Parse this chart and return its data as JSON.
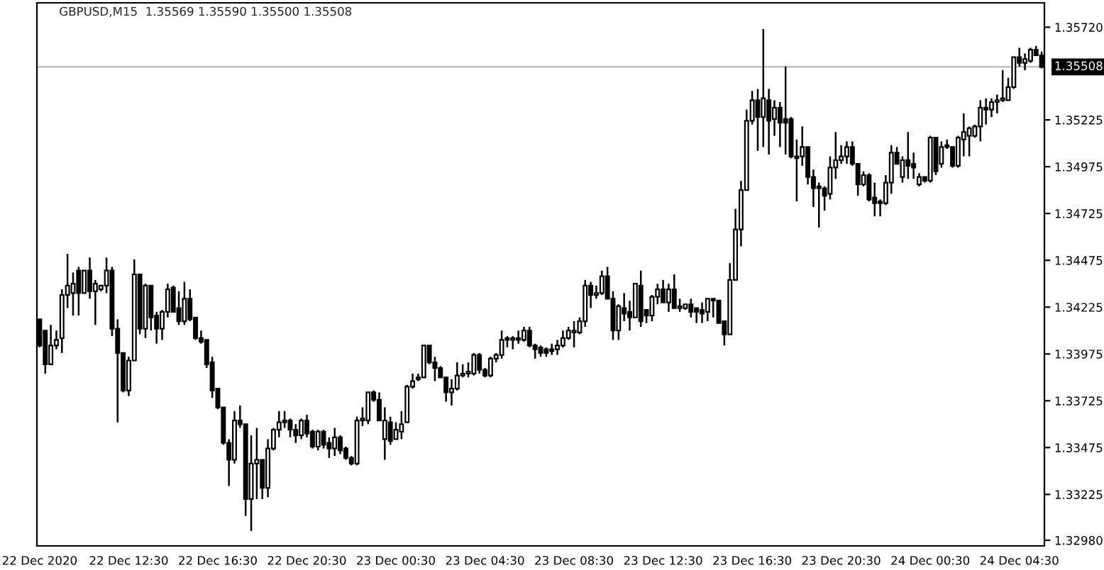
{
  "chart_data": {
    "type": "candlestick",
    "title": "GBPUSD,M15  1.35569 1.35590 1.35500 1.35508",
    "color": "#000000",
    "grid": false,
    "categories": [
      "22 Dec 2020",
      null,
      null,
      null,
      null,
      null,
      null,
      null,
      null,
      null,
      null,
      null,
      null,
      null,
      null,
      null,
      "22 Dec 12:30",
      null,
      null,
      null,
      null,
      null,
      null,
      null,
      null,
      null,
      null,
      null,
      null,
      null,
      null,
      null,
      "22 Dec 16:30",
      null,
      null,
      null,
      null,
      null,
      null,
      null,
      null,
      null,
      null,
      null,
      null,
      null,
      null,
      null,
      "22 Dec 20:30",
      null,
      null,
      null,
      null,
      null,
      null,
      null,
      null,
      null,
      null,
      null,
      null,
      null,
      null,
      null,
      "23 Dec 00:30",
      null,
      null,
      null,
      null,
      null,
      null,
      null,
      null,
      null,
      null,
      null,
      null,
      null,
      null,
      null,
      "23 Dec 04:30",
      null,
      null,
      null,
      null,
      null,
      null,
      null,
      null,
      null,
      null,
      null,
      null,
      null,
      null,
      null,
      "23 Dec 08:30",
      null,
      null,
      null,
      null,
      null,
      null,
      null,
      null,
      null,
      null,
      null,
      null,
      null,
      null,
      null,
      "23 Dec 12:30",
      null,
      null,
      null,
      null,
      null,
      null,
      null,
      null,
      null,
      null,
      null,
      null,
      null,
      null,
      null,
      "23 Dec 16:30",
      null,
      null,
      null,
      null,
      null,
      null,
      null,
      null,
      null,
      null,
      null,
      null,
      null,
      null,
      null,
      "23 Dec 20:30",
      null,
      null,
      null,
      null,
      null,
      null,
      null,
      null,
      null,
      null,
      null,
      null,
      null,
      null,
      null,
      "24 Dec 00:30",
      null,
      null,
      null,
      null,
      null,
      null,
      null,
      null,
      null,
      null,
      null,
      null,
      null,
      null,
      null,
      "24 Dec 04:30",
      null,
      null,
      null,
      null
    ],
    "ohlc": [
      [
        1.3416,
        1.3416,
        1.3401,
        1.3402
      ],
      [
        1.341,
        1.341,
        1.3387,
        1.3392
      ],
      [
        1.3392,
        1.3413,
        1.3392,
        1.3402
      ],
      [
        1.3402,
        1.341,
        1.34,
        1.3405
      ],
      [
        1.3406,
        1.3432,
        1.3398,
        1.3429
      ],
      [
        1.3429,
        1.3451,
        1.3422,
        1.3434
      ],
      [
        1.343,
        1.3441,
        1.3418,
        1.3435
      ],
      [
        1.3442,
        1.3444,
        1.3418,
        1.343
      ],
      [
        1.343,
        1.3442,
        1.343,
        1.3442
      ],
      [
        1.3442,
        1.3449,
        1.3427,
        1.3431
      ],
      [
        1.3431,
        1.3437,
        1.3413,
        1.3435
      ],
      [
        1.3432,
        1.3434,
        1.3431,
        1.3434
      ],
      [
        1.3434,
        1.3449,
        1.343,
        1.3442
      ],
      [
        1.3442,
        1.3444,
        1.3407,
        1.3411
      ],
      [
        1.3411,
        1.3416,
        1.3361,
        1.3398
      ],
      [
        1.3398,
        1.3398,
        1.3377,
        1.3378
      ],
      [
        1.3378,
        1.3396,
        1.3375,
        1.3394
      ],
      [
        1.3394,
        1.3448,
        1.3394,
        1.344
      ],
      [
        1.344,
        1.344,
        1.3408,
        1.3411
      ],
      [
        1.3411,
        1.3435,
        1.3406,
        1.3434
      ],
      [
        1.3434,
        1.3434,
        1.341,
        1.3417
      ],
      [
        1.3418,
        1.342,
        1.3403,
        1.3411
      ],
      [
        1.3411,
        1.3421,
        1.3405,
        1.342
      ],
      [
        1.342,
        1.3435,
        1.3417,
        1.3432
      ],
      [
        1.3433,
        1.3434,
        1.342,
        1.342
      ],
      [
        1.3422,
        1.3431,
        1.3413,
        1.3415
      ],
      [
        1.3415,
        1.3436,
        1.3413,
        1.3427
      ],
      [
        1.3427,
        1.3432,
        1.3415,
        1.3416
      ],
      [
        1.3417,
        1.3417,
        1.3405,
        1.3406
      ],
      [
        1.3406,
        1.341,
        1.3403,
        1.3404
      ],
      [
        1.3405,
        1.3405,
        1.339,
        1.3392
      ],
      [
        1.3393,
        1.3396,
        1.3374,
        1.3378
      ],
      [
        1.3379,
        1.3379,
        1.3368,
        1.3369
      ],
      [
        1.3369,
        1.3369,
        1.3349,
        1.335
      ],
      [
        1.335,
        1.3352,
        1.3327,
        1.3341
      ],
      [
        1.3341,
        1.3367,
        1.3339,
        1.3362
      ],
      [
        1.3362,
        1.337,
        1.3358,
        1.336
      ],
      [
        1.336,
        1.336,
        1.3311,
        1.332
      ],
      [
        1.332,
        1.3354,
        1.3303,
        1.3339
      ],
      [
        1.3339,
        1.3358,
        1.332,
        1.3341
      ],
      [
        1.3341,
        1.3341,
        1.332,
        1.3326
      ],
      [
        1.3326,
        1.3352,
        1.3321,
        1.3347
      ],
      [
        1.3347,
        1.3358,
        1.3346,
        1.3357
      ],
      [
        1.3357,
        1.3367,
        1.3353,
        1.3361
      ],
      [
        1.3361,
        1.3367,
        1.3358,
        1.3362
      ],
      [
        1.3362,
        1.3363,
        1.3353,
        1.3357
      ],
      [
        1.3357,
        1.336,
        1.335,
        1.3354
      ],
      [
        1.3354,
        1.3363,
        1.3352,
        1.3362
      ],
      [
        1.3362,
        1.3365,
        1.3353,
        1.3355
      ],
      [
        1.3356,
        1.3357,
        1.3347,
        1.3348
      ],
      [
        1.3348,
        1.3357,
        1.3346,
        1.3356
      ],
      [
        1.3356,
        1.3357,
        1.3347,
        1.3349
      ],
      [
        1.335,
        1.3353,
        1.3342,
        1.3347
      ],
      [
        1.3347,
        1.3358,
        1.3343,
        1.3353
      ],
      [
        1.3353,
        1.3354,
        1.3344,
        1.3346
      ],
      [
        1.3347,
        1.3348,
        1.3341,
        1.3342
      ],
      [
        1.3342,
        1.3343,
        1.3338,
        1.3339
      ],
      [
        1.3339,
        1.3364,
        1.3338,
        1.3362
      ],
      [
        1.3362,
        1.3369,
        1.3359,
        1.3363
      ],
      [
        1.3362,
        1.3377,
        1.336,
        1.3377
      ],
      [
        1.3377,
        1.3378,
        1.3372,
        1.3373
      ],
      [
        1.3373,
        1.3377,
        1.3362,
        1.3362
      ],
      [
        1.3352,
        1.3369,
        1.3341,
        1.3362
      ],
      [
        1.3361,
        1.3364,
        1.3349,
        1.3351
      ],
      [
        1.3352,
        1.3361,
        1.3352,
        1.3357
      ],
      [
        1.3356,
        1.3367,
        1.3352,
        1.336
      ],
      [
        1.3361,
        1.3381,
        1.3361,
        1.338
      ],
      [
        1.338,
        1.3387,
        1.3379,
        1.3383
      ],
      [
        1.3384,
        1.3387,
        1.3383,
        1.3385
      ],
      [
        1.3385,
        1.3402,
        1.3385,
        1.3402
      ],
      [
        1.3402,
        1.3402,
        1.3392,
        1.3393
      ],
      [
        1.3393,
        1.3396,
        1.3383,
        1.339
      ],
      [
        1.339,
        1.3391,
        1.3385,
        1.3385
      ],
      [
        1.3385,
        1.3385,
        1.3372,
        1.3377
      ],
      [
        1.3377,
        1.3384,
        1.337,
        1.3379
      ],
      [
        1.3379,
        1.3393,
        1.3378,
        1.3386
      ],
      [
        1.3386,
        1.3392,
        1.3385,
        1.3387
      ],
      [
        1.3387,
        1.3393,
        1.3385,
        1.3388
      ],
      [
        1.3387,
        1.3398,
        1.3386,
        1.3397
      ],
      [
        1.3397,
        1.3398,
        1.3387,
        1.3389
      ],
      [
        1.3389,
        1.339,
        1.3385,
        1.3386
      ],
      [
        1.3386,
        1.3396,
        1.3385,
        1.3395
      ],
      [
        1.3395,
        1.3398,
        1.3393,
        1.3397
      ],
      [
        1.3397,
        1.341,
        1.3395,
        1.3405
      ],
      [
        1.3405,
        1.3407,
        1.3401,
        1.3406
      ],
      [
        1.3405,
        1.3407,
        1.34,
        1.3406
      ],
      [
        1.3405,
        1.341,
        1.3403,
        1.3406
      ],
      [
        1.3405,
        1.3412,
        1.3404,
        1.341
      ],
      [
        1.341,
        1.3412,
        1.3401,
        1.3402
      ],
      [
        1.3402,
        1.3403,
        1.3395,
        1.34
      ],
      [
        1.3401,
        1.3402,
        1.3396,
        1.3398
      ],
      [
        1.34,
        1.3401,
        1.3396,
        1.3398
      ],
      [
        1.34,
        1.3403,
        1.3397,
        1.3399
      ],
      [
        1.34,
        1.3405,
        1.3397,
        1.3402
      ],
      [
        1.3402,
        1.341,
        1.3401,
        1.3406
      ],
      [
        1.3406,
        1.3412,
        1.3405,
        1.341
      ],
      [
        1.3409,
        1.3415,
        1.3401,
        1.341
      ],
      [
        1.3409,
        1.3417,
        1.3408,
        1.3415
      ],
      [
        1.3415,
        1.3437,
        1.3412,
        1.3434
      ],
      [
        1.3434,
        1.3436,
        1.3422,
        1.3429
      ],
      [
        1.3429,
        1.3434,
        1.3427,
        1.343
      ],
      [
        1.343,
        1.3442,
        1.3429,
        1.3439
      ],
      [
        1.3439,
        1.3444,
        1.3427,
        1.3427
      ],
      [
        1.3427,
        1.3431,
        1.3405,
        1.341
      ],
      [
        1.341,
        1.3424,
        1.3405,
        1.3423
      ],
      [
        1.3422,
        1.343,
        1.3415,
        1.3419
      ],
      [
        1.342,
        1.3426,
        1.341,
        1.3417
      ],
      [
        1.3417,
        1.3435,
        1.3417,
        1.3435
      ],
      [
        1.3434,
        1.3442,
        1.3412,
        1.3415
      ],
      [
        1.3421,
        1.3421,
        1.3414,
        1.3418
      ],
      [
        1.3418,
        1.3429,
        1.3415,
        1.3428
      ],
      [
        1.3428,
        1.3435,
        1.3424,
        1.3432
      ],
      [
        1.3432,
        1.3437,
        1.3425,
        1.3425
      ],
      [
        1.3425,
        1.3435,
        1.342,
        1.3432
      ],
      [
        1.3432,
        1.344,
        1.3422,
        1.3422
      ],
      [
        1.3422,
        1.3427,
        1.342,
        1.3423
      ],
      [
        1.3422,
        1.3424,
        1.3421,
        1.3424
      ],
      [
        1.3424,
        1.3427,
        1.3417,
        1.342
      ],
      [
        1.3422,
        1.3422,
        1.3414,
        1.342
      ],
      [
        1.3421,
        1.3425,
        1.3414,
        1.3419
      ],
      [
        1.342,
        1.3427,
        1.3415,
        1.3427
      ],
      [
        1.3427,
        1.3427,
        1.3417,
        1.3426
      ],
      [
        1.3426,
        1.3426,
        1.3414,
        1.3414
      ],
      [
        1.3415,
        1.3415,
        1.3402,
        1.3408
      ],
      [
        1.3408,
        1.3446,
        1.3408,
        1.3437
      ],
      [
        1.3437,
        1.3475,
        1.3437,
        1.3464
      ],
      [
        1.3464,
        1.349,
        1.3455,
        1.3485
      ],
      [
        1.3485,
        1.3528,
        1.3485,
        1.3522
      ],
      [
        1.3522,
        1.3538,
        1.352,
        1.3533
      ],
      [
        1.3533,
        1.3539,
        1.3506,
        1.3524
      ],
      [
        1.3524,
        1.3571,
        1.3508,
        1.3534
      ],
      [
        1.3533,
        1.3539,
        1.3504,
        1.3522
      ],
      [
        1.3523,
        1.3533,
        1.3514,
        1.3529
      ],
      [
        1.3529,
        1.3532,
        1.3508,
        1.3521
      ],
      [
        1.3523,
        1.3551,
        1.3504,
        1.3521
      ],
      [
        1.3523,
        1.3524,
        1.3502,
        1.3503
      ],
      [
        1.3502,
        1.3512,
        1.3479,
        1.3503
      ],
      [
        1.3503,
        1.3519,
        1.3498,
        1.3508
      ],
      [
        1.3508,
        1.3508,
        1.3488,
        1.3492
      ],
      [
        1.3492,
        1.3496,
        1.3476,
        1.3486
      ],
      [
        1.3487,
        1.3489,
        1.3465,
        1.3486
      ],
      [
        1.3486,
        1.3487,
        1.3474,
        1.3482
      ],
      [
        1.3483,
        1.3503,
        1.348,
        1.3497
      ],
      [
        1.3497,
        1.3516,
        1.3491,
        1.3501
      ],
      [
        1.3501,
        1.3509,
        1.3499,
        1.3503
      ],
      [
        1.3503,
        1.3511,
        1.3499,
        1.3508
      ],
      [
        1.3508,
        1.3511,
        1.3498,
        1.3499
      ],
      [
        1.3499,
        1.3499,
        1.3482,
        1.3488
      ],
      [
        1.3488,
        1.3495,
        1.3487,
        1.3493
      ],
      [
        1.3493,
        1.3494,
        1.3479,
        1.348
      ],
      [
        1.3481,
        1.3489,
        1.3471,
        1.3478
      ],
      [
        1.3479,
        1.348,
        1.3471,
        1.3478
      ],
      [
        1.3478,
        1.3493,
        1.3477,
        1.3489
      ],
      [
        1.3489,
        1.3509,
        1.3483,
        1.3505
      ],
      [
        1.3505,
        1.3508,
        1.3499,
        1.3499
      ],
      [
        1.3492,
        1.3503,
        1.3489,
        1.3501
      ],
      [
        1.3501,
        1.3516,
        1.3491,
        1.3498
      ],
      [
        1.3499,
        1.3505,
        1.3491,
        1.3497
      ],
      [
        1.3488,
        1.3494,
        1.3487,
        1.3492
      ],
      [
        1.3492,
        1.3492,
        1.3489,
        1.349
      ],
      [
        1.349,
        1.3514,
        1.3489,
        1.3513
      ],
      [
        1.3513,
        1.3513,
        1.3493,
        1.3495
      ],
      [
        1.3499,
        1.3511,
        1.3497,
        1.3508
      ],
      [
        1.3509,
        1.3512,
        1.3507,
        1.3508
      ],
      [
        1.3508,
        1.3508,
        1.3497,
        1.3498
      ],
      [
        1.3498,
        1.3514,
        1.3497,
        1.3513
      ],
      [
        1.3512,
        1.3526,
        1.3503,
        1.3516
      ],
      [
        1.3514,
        1.3519,
        1.3503,
        1.3518
      ],
      [
        1.3514,
        1.352,
        1.3513,
        1.3519
      ],
      [
        1.3519,
        1.3533,
        1.3511,
        1.3529
      ],
      [
        1.3529,
        1.3534,
        1.352,
        1.3528
      ],
      [
        1.3528,
        1.3534,
        1.3524,
        1.3532
      ],
      [
        1.3532,
        1.3536,
        1.3526,
        1.3533
      ],
      [
        1.3533,
        1.3549,
        1.3532,
        1.3534
      ],
      [
        1.3533,
        1.3545,
        1.3533,
        1.354
      ],
      [
        1.354,
        1.3556,
        1.3539,
        1.3556
      ],
      [
        1.3556,
        1.3561,
        1.3551,
        1.3553
      ],
      [
        1.3553,
        1.3558,
        1.3549,
        1.3555
      ],
      [
        1.3554,
        1.3561,
        1.3553,
        1.356
      ],
      [
        1.356,
        1.3562,
        1.3557,
        1.3557
      ],
      [
        1.35569,
        1.3559,
        1.355,
        1.35508
      ]
    ],
    "ylim": [
      1.3295,
      1.3585
    ],
    "yticks": [
      {
        "value": 1.3572,
        "label": "1.35720"
      },
      1.35225,
      1.34975,
      1.34725,
      1.34475,
      1.34225,
      1.33975,
      1.33725,
      1.33475,
      1.33225,
      {
        "value": 1.3298,
        "label": "1.32980"
      }
    ],
    "ref_lines": [
      {
        "axis": "y",
        "value": 1.35508,
        "label": "1.35508",
        "color": "#c0c0c0"
      }
    ]
  }
}
